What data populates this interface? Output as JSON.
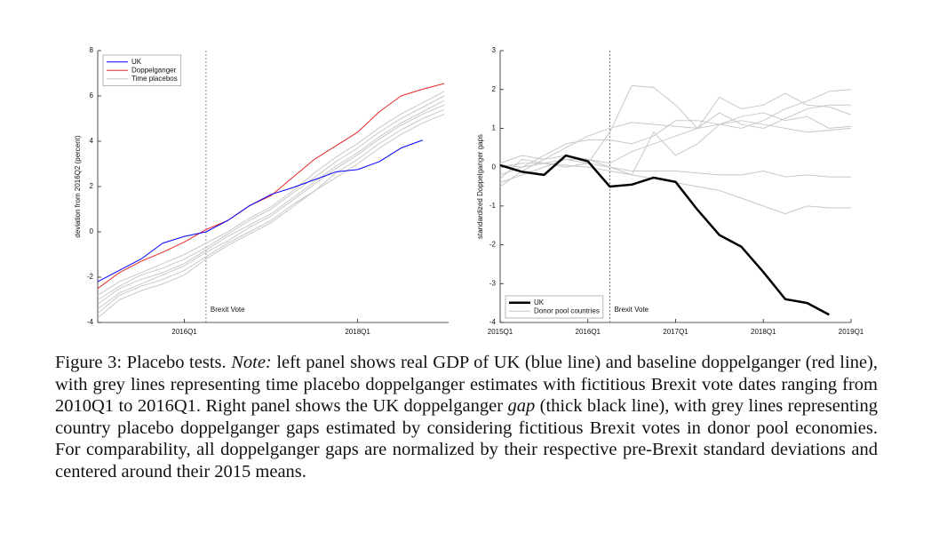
{
  "chart_data": [
    {
      "type": "line",
      "y_label": "deviation from 2016Q2 (percent)",
      "categories": [
        null,
        null,
        null,
        null,
        "2016Q1",
        null,
        null,
        null,
        null,
        null,
        null,
        null,
        "2018Q1",
        null,
        null,
        null,
        null
      ],
      "ylim": [
        -4,
        8
      ],
      "yticks": [
        -4,
        -2,
        0,
        2,
        4,
        6,
        8
      ],
      "vline_index": 5,
      "annotation": "Brexit Vote",
      "legend": "upper left",
      "series": [
        {
          "name": "UK",
          "color": "#0000ff",
          "values": [
            -2.2,
            -1.7,
            -1.2,
            -0.5,
            -0.2,
            0,
            0.5,
            1.15,
            1.65,
            1.95,
            2.3,
            2.65,
            2.75,
            3.1,
            3.7,
            4.05,
            null
          ]
        },
        {
          "name": "Doppelganger",
          "color": "#e8262a",
          "values": [
            -2.5,
            -1.8,
            -1.3,
            -0.9,
            -0.45,
            0.1,
            0.5,
            1.15,
            1.6,
            2.4,
            3.2,
            3.8,
            4.4,
            5.3,
            6.0,
            6.3,
            6.55
          ]
        },
        {
          "name": "Time placebos",
          "color": "#c8c8c8",
          "values": [
            -3.8,
            -3.0,
            -2.6,
            -2.3,
            -1.9,
            -1.2,
            -0.6,
            -0.1,
            0.4,
            1.1,
            1.8,
            2.4,
            3.0,
            3.7,
            4.3,
            4.8,
            5.2
          ]
        },
        {
          "color": "#c8c8c8",
          "values": [
            -3.6,
            -2.8,
            -2.4,
            -2.1,
            -1.7,
            -1.1,
            -0.5,
            0.0,
            0.5,
            1.2,
            1.8,
            2.6,
            3.2,
            3.9,
            4.5,
            5.0,
            5.4
          ]
        },
        {
          "color": "#c8c8c8",
          "values": [
            -3.4,
            -2.7,
            -2.3,
            -1.9,
            -1.5,
            -0.9,
            -0.4,
            0.2,
            0.7,
            1.4,
            2.1,
            2.8,
            3.4,
            4.1,
            4.7,
            5.2,
            5.6
          ]
        },
        {
          "color": "#c8c8c8",
          "values": [
            -3.2,
            -2.5,
            -2.1,
            -1.8,
            -1.4,
            -0.8,
            -0.2,
            0.3,
            0.8,
            1.5,
            2.2,
            2.9,
            3.5,
            4.2,
            4.8,
            5.3,
            5.8
          ]
        },
        {
          "color": "#c8c8c8",
          "values": [
            -3.0,
            -2.4,
            -1.9,
            -1.6,
            -1.2,
            -0.7,
            -0.1,
            0.5,
            1.0,
            1.7,
            2.4,
            3.1,
            3.7,
            4.4,
            5.0,
            5.5,
            6.0
          ]
        },
        {
          "color": "#c8c8c8",
          "values": [
            -2.8,
            -2.2,
            -1.8,
            -1.4,
            -1.0,
            -0.5,
            0.0,
            0.6,
            1.1,
            1.8,
            2.6,
            3.3,
            3.9,
            4.6,
            5.2,
            5.7,
            6.2
          ]
        }
      ]
    },
    {
      "type": "line",
      "y_label": "standardized Doppelganger gaps",
      "categories": [
        "2015Q1",
        null,
        null,
        null,
        "2016Q1",
        null,
        null,
        null,
        "2017Q1",
        null,
        null,
        null,
        "2018Q1",
        null,
        null,
        null,
        "2019Q1"
      ],
      "ylim": [
        -4,
        3
      ],
      "yticks": [
        -4,
        -3,
        -2,
        -1,
        0,
        1,
        2,
        3
      ],
      "vline_index": 5,
      "annotation": "Brexit Vote",
      "legend": "lower left",
      "series": [
        {
          "name": "UK",
          "color": "#000000",
          "linewidth": 2.5,
          "values": [
            0.05,
            -0.12,
            -0.2,
            0.3,
            0.15,
            -0.5,
            -0.45,
            -0.27,
            -0.38,
            -1.1,
            -1.75,
            -2.05,
            -2.7,
            -3.4,
            -3.5,
            -3.8,
            null
          ]
        },
        {
          "name": "Donor pool countries",
          "color": "#c8c8c8",
          "values": [
            -0.3,
            0.2,
            0.1,
            0.0,
            0.1,
            0.9,
            2.1,
            2.05,
            1.6,
            1.0,
            1.8,
            1.5,
            1.6,
            1.9,
            1.6,
            1.55,
            1.35
          ]
        },
        {
          "color": "#c8c8c8",
          "values": [
            -0.5,
            -0.1,
            0.2,
            0.5,
            0.8,
            1.0,
            1.15,
            1.1,
            1.05,
            1.0,
            1.1,
            1.2,
            1.1,
            1.0,
            0.9,
            0.95,
            1.0
          ]
        },
        {
          "color": "#c8c8c8",
          "values": [
            -0.2,
            0.0,
            0.3,
            0.6,
            0.7,
            0.7,
            0.6,
            0.8,
            1.2,
            1.2,
            1.1,
            1.0,
            1.2,
            1.5,
            1.7,
            1.95,
            2.0
          ]
        },
        {
          "color": "#c8c8c8",
          "values": [
            0.0,
            0.1,
            0.1,
            0.2,
            0.1,
            0.0,
            -0.1,
            -0.1,
            -0.1,
            -0.15,
            -0.2,
            -0.2,
            -0.1,
            -0.25,
            -0.2,
            -0.25,
            -0.25
          ]
        },
        {
          "color": "#c8c8c8",
          "values": [
            0.05,
            0.0,
            0.1,
            0.05,
            0.0,
            -0.1,
            -0.2,
            -0.3,
            -0.4,
            -0.5,
            -0.6,
            -0.8,
            -1.0,
            -1.2,
            -1.0,
            -1.05,
            -1.05
          ]
        },
        {
          "color": "#c8c8c8",
          "values": [
            -0.4,
            -0.2,
            0.0,
            0.2,
            0.2,
            0.0,
            -0.2,
            0.9,
            0.3,
            0.6,
            1.1,
            1.3,
            1.4,
            1.2,
            1.3,
            1.0,
            1.05
          ]
        },
        {
          "color": "#c8c8c8",
          "values": [
            0.1,
            0.3,
            0.2,
            0.3,
            0.2,
            0.1,
            0.4,
            0.6,
            0.8,
            1.0,
            1.4,
            1.1,
            1.0,
            1.25,
            1.5,
            1.6,
            1.6
          ]
        }
      ]
    }
  ],
  "caption": [
    {
      "text": "Figure 3: Placebo tests. "
    },
    {
      "text": "Note:",
      "italic": true
    },
    {
      "text": " left panel shows real GDP of UK (blue line) and baseline doppelganger (red line), with grey lines representing time placebo doppelganger estimates with fictitious Brexit vote dates ranging from 2010Q1 to 2016Q1. Right panel shows the UK doppelganger "
    },
    {
      "text": "gap",
      "italic": true
    },
    {
      "text": " (thick black line), with grey lines representing country placebo doppelganger gaps estimated by considering fictitious Brexit votes in donor pool economies. For comparability, all doppelganger gaps are normalized by their respective pre-Brexit standard deviations and centered around their 2015 means."
    }
  ]
}
